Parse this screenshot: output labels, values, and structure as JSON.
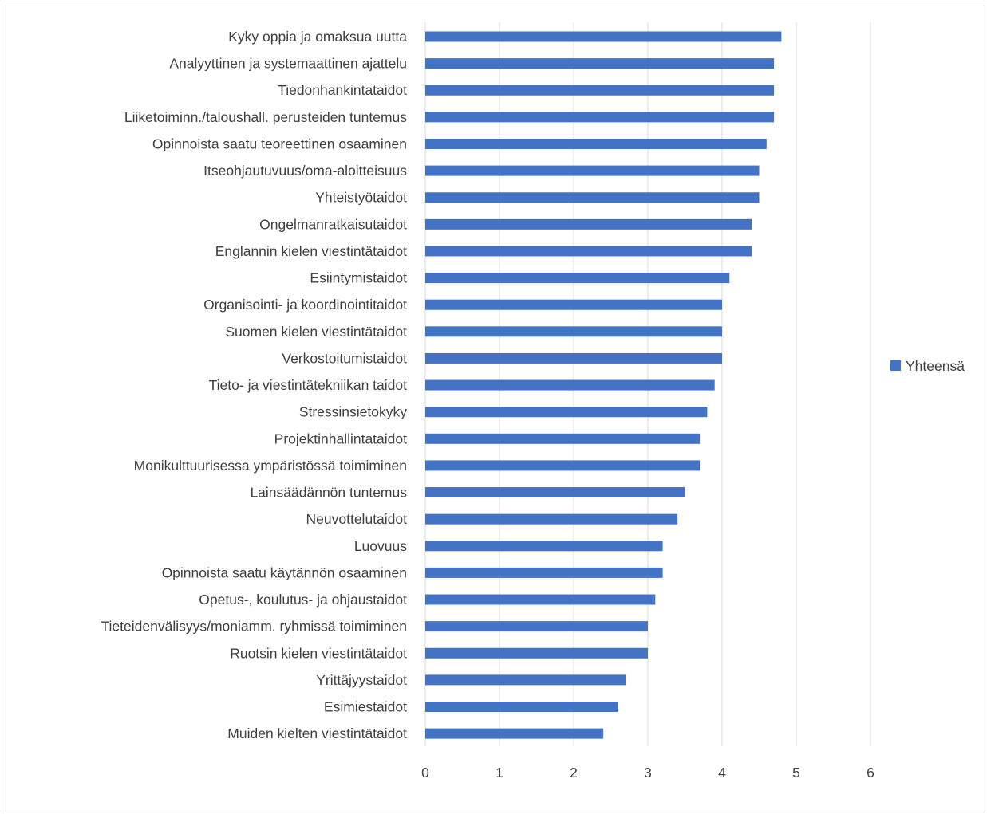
{
  "chart_data": {
    "type": "bar",
    "orientation": "horizontal",
    "categories": [
      "Kyky oppia ja omaksua uutta",
      "Analyyttinen ja systemaattinen ajattelu",
      "Tiedonhankintataidot",
      "Liiketoiminn./taloushall. perusteiden tuntemus",
      "Opinnoista saatu teoreettinen osaaminen",
      "Itseohjautuvuus/oma-aloitteisuus",
      "Yhteistyötaidot",
      "Ongelmanratkaisutaidot",
      "Englannin kielen viestintätaidot",
      "Esiintymistaidot",
      "Organisointi- ja koordinointitaidot",
      "Suomen kielen viestintätaidot",
      "Verkostoitumistaidot",
      "Tieto- ja viestintätekniikan taidot",
      "Stressinsietokyky",
      "Projektinhallintataidot",
      "Monikulttuurisessa ympäristössä toimiminen",
      "Lainsäädännön tuntemus",
      "Neuvottelutaidot",
      "Luovuus",
      "Opinnoista saatu käytännön osaaminen",
      "Opetus-, koulutus- ja ohjaustaidot",
      "Tieteidenvälisyys/moniamm. ryhmissä toimiminen",
      "Ruotsin kielen viestintätaidot",
      "Yrittäjyystaidot",
      "Esimiestaidot",
      "Muiden kielten viestintätaidot"
    ],
    "series": [
      {
        "name": "Yhteensä",
        "color": "#4472c4",
        "values": [
          4.8,
          4.7,
          4.7,
          4.7,
          4.6,
          4.5,
          4.5,
          4.4,
          4.4,
          4.1,
          4.0,
          4.0,
          4.0,
          3.9,
          3.8,
          3.7,
          3.7,
          3.5,
          3.4,
          3.2,
          3.2,
          3.1,
          3.0,
          3.0,
          2.7,
          2.6,
          2.4
        ]
      }
    ],
    "xlim": [
      0,
      6
    ],
    "xticks": [
      "0",
      "1",
      "2",
      "3",
      "4",
      "5",
      "6"
    ],
    "grid": true,
    "legend_position": "right",
    "title": "",
    "xlabel": "",
    "ylabel": ""
  },
  "colors": {
    "bar": "#4472c4",
    "grid": "#d9d9d9",
    "text": "#404040"
  }
}
